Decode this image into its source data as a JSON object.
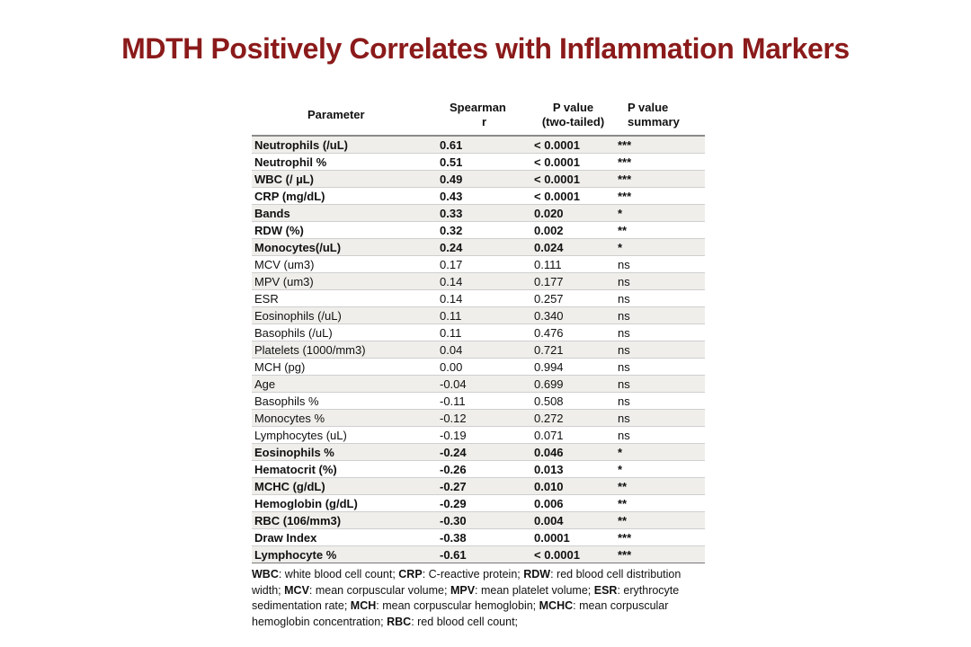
{
  "title": "MDTH Positively Correlates with Inflammation Markers",
  "table": {
    "headers": {
      "parameter": "Parameter",
      "spearman_line1": "Spearman",
      "spearman_line2": "r",
      "pvalue_line1": "P value",
      "pvalue_line2": "(two-tailed)",
      "summary_line1": "P value",
      "summary_line2": "summary"
    },
    "rows": [
      {
        "parameter": "Neutrophils (/uL)",
        "r": "0.61",
        "p": "< 0.0001",
        "summary": "***",
        "bold": true
      },
      {
        "parameter": "Neutrophil %",
        "r": "0.51",
        "p": "< 0.0001",
        "summary": "***",
        "bold": true
      },
      {
        "parameter": "WBC (/ µL)",
        "r": "0.49",
        "p": "< 0.0001",
        "summary": "***",
        "bold": true
      },
      {
        "parameter": "CRP (mg/dL)",
        "r": "0.43",
        "p": "< 0.0001",
        "summary": "***",
        "bold": true
      },
      {
        "parameter": "Bands",
        "r": "0.33",
        "p": "0.020",
        "summary": "*",
        "bold": true
      },
      {
        "parameter": "RDW (%)",
        "r": "0.32",
        "p": "0.002",
        "summary": "**",
        "bold": true
      },
      {
        "parameter": "Monocytes(/uL)",
        "r": "0.24",
        "p": "0.024",
        "summary": "*",
        "bold": true
      },
      {
        "parameter": "MCV (um3)",
        "r": "0.17",
        "p": "0.111",
        "summary": "ns",
        "bold": false
      },
      {
        "parameter": "MPV (um3)",
        "r": "0.14",
        "p": "0.177",
        "summary": "ns",
        "bold": false
      },
      {
        "parameter": "ESR",
        "r": "0.14",
        "p": "0.257",
        "summary": "ns",
        "bold": false
      },
      {
        "parameter": "Eosinophils (/uL)",
        "r": "0.11",
        "p": "0.340",
        "summary": "ns",
        "bold": false
      },
      {
        "parameter": "Basophils (/uL)",
        "r": "0.11",
        "p": "0.476",
        "summary": "ns",
        "bold": false
      },
      {
        "parameter": "Platelets (1000/mm3)",
        "r": "0.04",
        "p": "0.721",
        "summary": "ns",
        "bold": false
      },
      {
        "parameter": "MCH (pg)",
        "r": "0.00",
        "p": "0.994",
        "summary": "ns",
        "bold": false
      },
      {
        "parameter": "Age",
        "r": "-0.04",
        "p": "0.699",
        "summary": "ns",
        "bold": false
      },
      {
        "parameter": "Basophils %",
        "r": "-0.11",
        "p": "0.508",
        "summary": "ns",
        "bold": false
      },
      {
        "parameter": "Monocytes %",
        "r": "-0.12",
        "p": "0.272",
        "summary": "ns",
        "bold": false
      },
      {
        "parameter": "Lymphocytes (uL)",
        "r": "-0.19",
        "p": "0.071",
        "summary": "ns",
        "bold": false
      },
      {
        "parameter": "Eosinophils %",
        "r": "-0.24",
        "p": "0.046",
        "summary": "*",
        "bold": true
      },
      {
        "parameter": "Hematocrit  (%)",
        "r": "-0.26",
        "p": "0.013",
        "summary": "*",
        "bold": true
      },
      {
        "parameter": "MCHC (g/dL)",
        "r": "-0.27",
        "p": "0.010",
        "summary": "**",
        "bold": true
      },
      {
        "parameter": "Hemoglobin (g/dL)",
        "r": "-0.29",
        "p": "0.006",
        "summary": "**",
        "bold": true
      },
      {
        "parameter": "RBC (106/mm3)",
        "r": "-0.30",
        "p": "0.004",
        "summary": "**",
        "bold": true
      },
      {
        "parameter": "Draw Index",
        "r": "-0.38",
        "p": "0.0001",
        "summary": "***",
        "bold": true
      },
      {
        "parameter": "Lymphocyte %",
        "r": "-0.61",
        "p": "< 0.0001",
        "summary": "***",
        "bold": true
      }
    ]
  },
  "footnote": [
    {
      "term": "WBC",
      "text": ": white blood cell count; "
    },
    {
      "term": "CRP",
      "text": ": C-reactive protein; "
    },
    {
      "term": "RDW",
      "text": ": red blood cell distribution width; "
    },
    {
      "term": "MCV",
      "text": ": mean corpuscular volume; "
    },
    {
      "term": "MPV",
      "text": ": mean platelet volume; "
    },
    {
      "term": "ESR",
      "text": ": erythrocyte sedimentation rate; "
    },
    {
      "term": "MCH",
      "text": ": mean corpuscular hemoglobin; "
    },
    {
      "term": "MCHC",
      "text": ": mean corpuscular hemoglobin concentration; "
    },
    {
      "term": "RBC",
      "text": ": red blood cell count;"
    }
  ],
  "colors": {
    "title": "#8b1a1a",
    "row_shade": "#efeeea",
    "rule": "#8a8a8a"
  }
}
